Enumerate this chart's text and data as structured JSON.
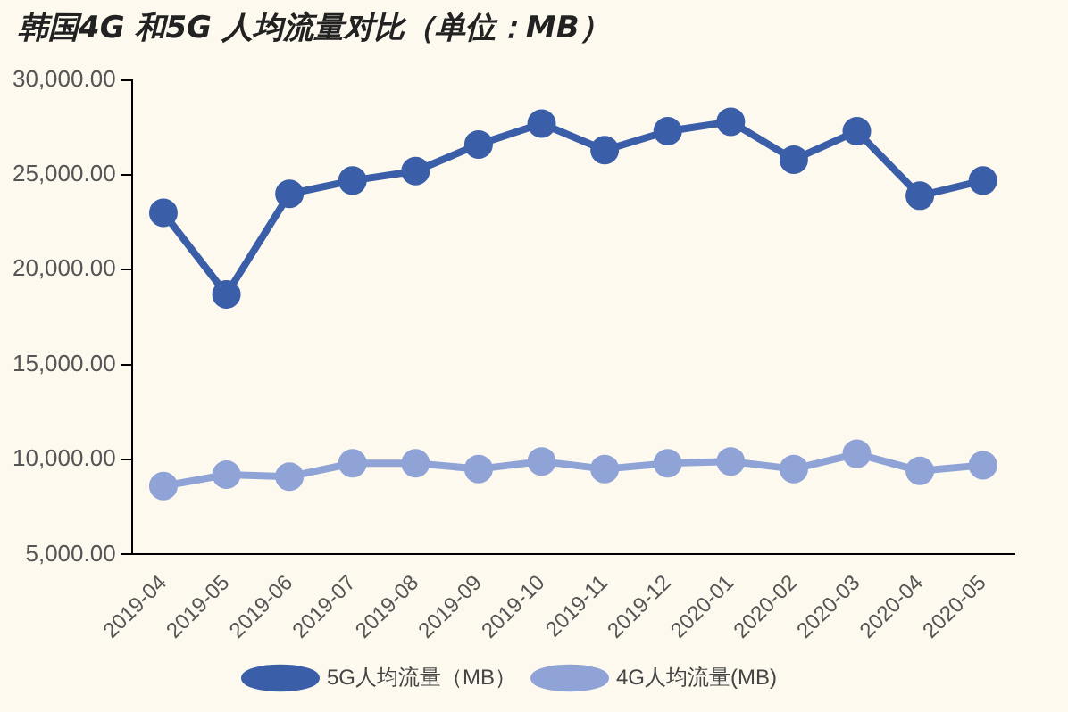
{
  "chart_data": {
    "type": "line",
    "title": "韩国4G 和5G 人均流量对比（单位：MB）",
    "categories": [
      "2019-04",
      "2019-05",
      "2019-06",
      "2019-07",
      "2019-08",
      "2019-09",
      "2019-10",
      "2019-11",
      "2019-12",
      "2020-01",
      "2020-02",
      "2020-03",
      "2020-04",
      "2020-05"
    ],
    "series": [
      {
        "name": "5G人均流量（MB）",
        "color": "#3b5ea8",
        "values": [
          23000,
          18700,
          24000,
          24700,
          25200,
          26600,
          27700,
          26300,
          27300,
          27800,
          25800,
          27300,
          23900,
          24700
        ]
      },
      {
        "name": "4G人均流量(MB)",
        "color": "#8fa3d6",
        "values": [
          8600,
          9200,
          9100,
          9800,
          9800,
          9500,
          9900,
          9500,
          9800,
          9900,
          9500,
          10300,
          9400,
          9700
        ]
      }
    ],
    "ylim": [
      5000,
      30000
    ],
    "yticks": [
      {
        "value": 5000,
        "label": "5,000.00"
      },
      {
        "value": 10000,
        "label": "10,000.00"
      },
      {
        "value": 15000,
        "label": "15,000.00"
      },
      {
        "value": 20000,
        "label": "20,000.00"
      },
      {
        "value": 25000,
        "label": "25,000.00"
      },
      {
        "value": 30000,
        "label": "30,000.00"
      }
    ],
    "grid": false,
    "legend": "bottom",
    "marker": "circle",
    "line_style": "solid"
  }
}
